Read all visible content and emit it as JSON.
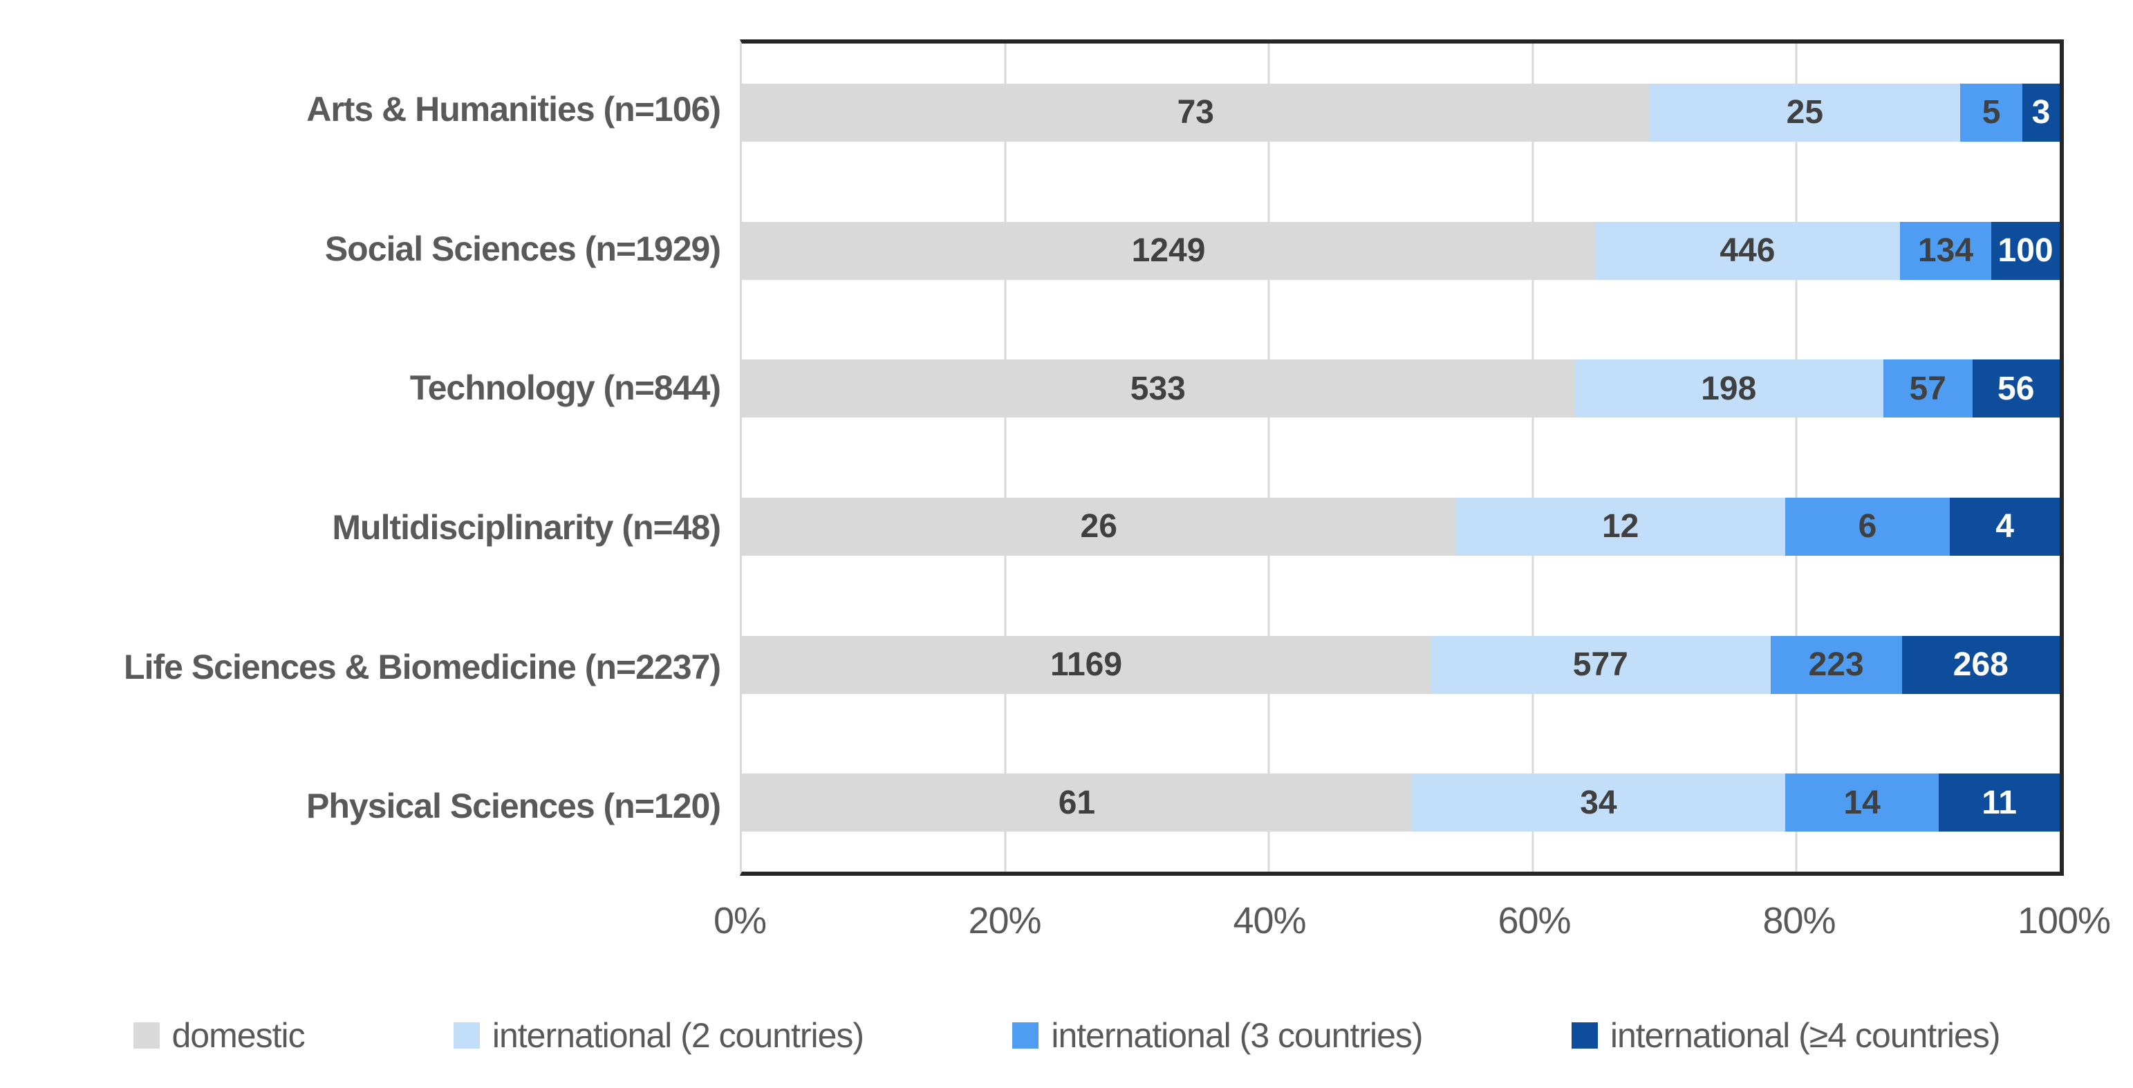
{
  "chart_data": {
    "type": "bar",
    "orientation": "horizontal",
    "stacked": "percent",
    "title": "",
    "xlabel": "",
    "ylabel": "",
    "xlim": [
      0,
      100
    ],
    "grid": "vertical gridlines every 20%",
    "legend_position": "bottom",
    "categories": [
      "Arts & Humanities (n=106)",
      "Social Sciences (n=1929)",
      "Technology (n=844)",
      "Multidisciplinarity (n=48)",
      "Life Sciences & Biomedicine (n=2237)",
      "Physical Sciences (n=120)"
    ],
    "series": [
      {
        "name": "domestic",
        "color": "#D9D9D9",
        "label_color": "#404040",
        "values": [
          73,
          1249,
          533,
          26,
          1169,
          61
        ]
      },
      {
        "name": "international (2 countries)",
        "color": "#C3DEF8",
        "label_color": "#404040",
        "values": [
          25,
          446,
          198,
          12,
          577,
          34
        ]
      },
      {
        "name": "international (3 countries)",
        "color": "#4E9DF2",
        "label_color": "#404040",
        "values": [
          5,
          134,
          57,
          6,
          223,
          14
        ]
      },
      {
        "name": "international (≥4 countries)",
        "color": "#0D4D9B",
        "label_color": "#FFFFFF",
        "values": [
          3,
          100,
          56,
          4,
          268,
          11
        ]
      }
    ],
    "x_ticks": [
      "0%",
      "20%",
      "40%",
      "60%",
      "80%",
      "100%"
    ],
    "x_tick_positions": [
      0,
      20,
      40,
      60,
      80,
      100
    ],
    "gridline_positions": [
      20,
      40,
      60,
      80
    ],
    "colors": {
      "plot_border": "#262626",
      "axis_line_left": "#D9D9D9",
      "gridline": "#D9D9D9",
      "category_label_text": "#595959",
      "axis_tick_text": "#595959",
      "legend_text": "#595959",
      "data_label_text": "#404040",
      "data_label_text_on_dark": "#FFFFFF"
    }
  }
}
